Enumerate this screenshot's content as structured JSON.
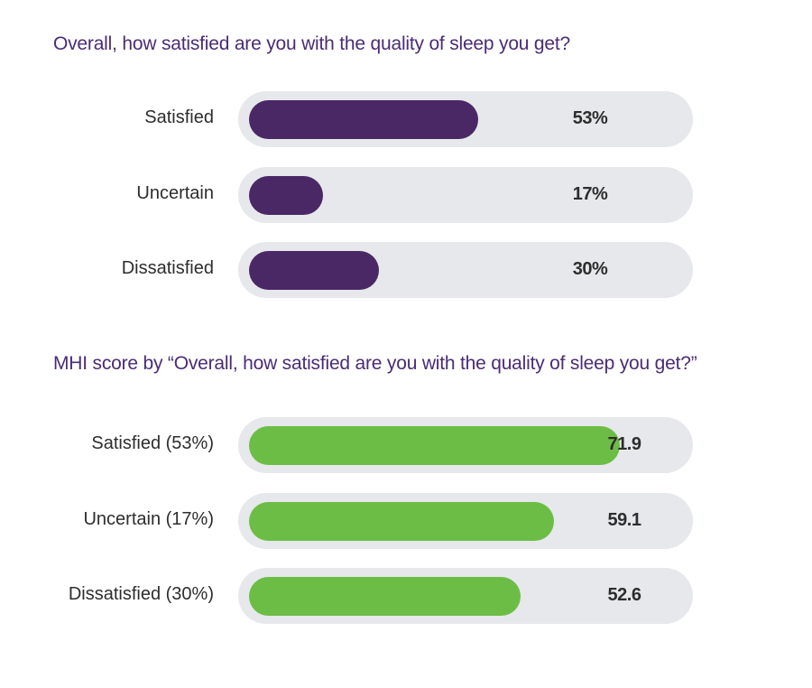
{
  "chart_data": [
    {
      "type": "bar",
      "title": "Overall, how satisfied are you with the quality of sleep you get?",
      "categories": [
        "Satisfied",
        "Uncertain",
        "Dissatisfied"
      ],
      "values": [
        53,
        17,
        30
      ],
      "value_labels": [
        "53%",
        "17%",
        "30%"
      ],
      "ylim": [
        0,
        100
      ],
      "colors": {
        "bar": "#4a2866",
        "track": "#e6e8eb",
        "title": "#4a2c74"
      }
    },
    {
      "type": "bar",
      "title": "MHI score by “Overall, how satisfied are you with the quality of sleep you get?”",
      "categories": [
        "Satisfied (53%)",
        "Uncertain (17%)",
        "Dissatisfied (30%)"
      ],
      "values": [
        71.9,
        59.1,
        52.6
      ],
      "value_labels": [
        "71.9",
        "59.1",
        "52.6"
      ],
      "ylim": [
        0,
        84
      ],
      "colors": {
        "bar": "#6cbd45",
        "track": "#e6e8eb",
        "title": "#4a2c74"
      }
    }
  ]
}
